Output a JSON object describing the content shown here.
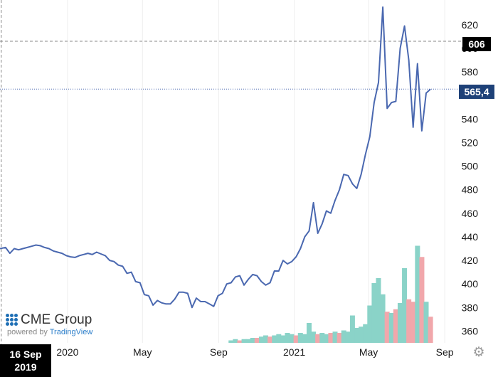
{
  "chart_data": {
    "type": "line",
    "title": "",
    "xlabel": "",
    "ylabel": "",
    "x_ticks": [
      "2020",
      "May",
      "Sep",
      "2021",
      "May",
      "Sep"
    ],
    "y_ticks": [
      "360",
      "380",
      "400",
      "420",
      "440",
      "460",
      "480",
      "500",
      "520",
      "540",
      "560",
      "580",
      "600",
      "620"
    ],
    "ylim": [
      350,
      635
    ],
    "xlim": [
      "2019-09-14",
      "2021-11-03"
    ],
    "grid": "vertical",
    "crosshair": {
      "x": "2019-09-16",
      "y": 606
    },
    "last_price": "565,4",
    "last_value": 565.4,
    "colors": {
      "line": "#4a68b0",
      "volume_up": "#8ad3c8",
      "volume_down": "#f1a7ab",
      "last_price_badge": "#1e4178",
      "crosshair_badge": "#000000"
    },
    "series": [
      {
        "values": [
          [
            "2019-09-14",
            430
          ],
          [
            "2019-09-23",
            431
          ],
          [
            "2019-09-30",
            426
          ],
          [
            "2019-10-07",
            430
          ],
          [
            "2019-10-14",
            429
          ],
          [
            "2019-10-21",
            430
          ],
          [
            "2019-10-28",
            431
          ],
          [
            "2019-11-04",
            432
          ],
          [
            "2019-11-11",
            433
          ],
          [
            "2019-11-18",
            432.5
          ],
          [
            "2019-11-25",
            431
          ],
          [
            "2019-12-02",
            430
          ],
          [
            "2019-12-09",
            428
          ],
          [
            "2019-12-16",
            427
          ],
          [
            "2019-12-23",
            426
          ],
          [
            "2019-12-30",
            424
          ],
          [
            "2020-01-06",
            423
          ],
          [
            "2020-01-13",
            422.5
          ],
          [
            "2020-01-20",
            424
          ],
          [
            "2020-01-27",
            425
          ],
          [
            "2020-02-03",
            426
          ],
          [
            "2020-02-10",
            425
          ],
          [
            "2020-02-17",
            427
          ],
          [
            "2020-02-24",
            425.5
          ],
          [
            "2020-03-02",
            424
          ],
          [
            "2020-03-09",
            420
          ],
          [
            "2020-03-16",
            419
          ],
          [
            "2020-03-23",
            416
          ],
          [
            "2020-03-30",
            415
          ],
          [
            "2020-04-06",
            409
          ],
          [
            "2020-04-13",
            410
          ],
          [
            "2020-04-20",
            402
          ],
          [
            "2020-04-27",
            401
          ],
          [
            "2020-05-04",
            391
          ],
          [
            "2020-05-11",
            390
          ],
          [
            "2020-05-18",
            382
          ],
          [
            "2020-05-25",
            386
          ],
          [
            "2020-06-01",
            384
          ],
          [
            "2020-06-08",
            383
          ],
          [
            "2020-06-15",
            383
          ],
          [
            "2020-06-22",
            387
          ],
          [
            "2020-06-29",
            393
          ],
          [
            "2020-07-06",
            393
          ],
          [
            "2020-07-13",
            392
          ],
          [
            "2020-07-20",
            380
          ],
          [
            "2020-07-27",
            388
          ],
          [
            "2020-08-03",
            385
          ],
          [
            "2020-08-10",
            385
          ],
          [
            "2020-08-17",
            383
          ],
          [
            "2020-08-24",
            381
          ],
          [
            "2020-08-31",
            390
          ],
          [
            "2020-09-07",
            392
          ],
          [
            "2020-09-14",
            400
          ],
          [
            "2020-09-21",
            401
          ],
          [
            "2020-09-28",
            406
          ],
          [
            "2020-10-05",
            407
          ],
          [
            "2020-10-12",
            399
          ],
          [
            "2020-10-19",
            404
          ],
          [
            "2020-10-26",
            408
          ],
          [
            "2020-11-02",
            407
          ],
          [
            "2020-11-09",
            402
          ],
          [
            "2020-11-16",
            399
          ],
          [
            "2020-11-23",
            401
          ],
          [
            "2020-11-30",
            411
          ],
          [
            "2020-12-07",
            411
          ],
          [
            "2020-12-14",
            420
          ],
          [
            "2020-12-21",
            417
          ],
          [
            "2020-12-28",
            419
          ],
          [
            "2021-01-04",
            423
          ],
          [
            "2021-01-11",
            430
          ],
          [
            "2021-01-18",
            440
          ],
          [
            "2021-01-25",
            445
          ],
          [
            "2021-02-01",
            469
          ],
          [
            "2021-02-08",
            443
          ],
          [
            "2021-02-15",
            451
          ],
          [
            "2021-02-22",
            462
          ],
          [
            "2021-03-01",
            460
          ],
          [
            "2021-03-08",
            471
          ],
          [
            "2021-03-15",
            480
          ],
          [
            "2021-03-22",
            493
          ],
          [
            "2021-03-29",
            492
          ],
          [
            "2021-04-05",
            485
          ],
          [
            "2021-04-12",
            481
          ],
          [
            "2021-04-19",
            493
          ],
          [
            "2021-04-26",
            510
          ],
          [
            "2021-05-03",
            525
          ],
          [
            "2021-05-10",
            554
          ],
          [
            "2021-05-17",
            571
          ],
          [
            "2021-05-24",
            635
          ],
          [
            "2021-05-31",
            549
          ],
          [
            "2021-06-07",
            554
          ],
          [
            "2021-06-14",
            555
          ],
          [
            "2021-06-21",
            600
          ],
          [
            "2021-06-28",
            619
          ],
          [
            "2021-07-05",
            590
          ],
          [
            "2021-07-12",
            533
          ],
          [
            "2021-07-19",
            587
          ],
          [
            "2021-07-26",
            530
          ],
          [
            "2021-08-02",
            562
          ],
          [
            "2021-08-09",
            565.4
          ]
        ]
      }
    ],
    "volume": [
      {
        "x": "2020-09-21",
        "v": 2,
        "dir": "up"
      },
      {
        "x": "2020-09-28",
        "v": 3,
        "dir": "up"
      },
      {
        "x": "2020-10-05",
        "v": 2,
        "dir": "down"
      },
      {
        "x": "2020-10-12",
        "v": 3,
        "dir": "up"
      },
      {
        "x": "2020-10-19",
        "v": 3,
        "dir": "up"
      },
      {
        "x": "2020-10-26",
        "v": 4,
        "dir": "up"
      },
      {
        "x": "2020-11-02",
        "v": 4,
        "dir": "down"
      },
      {
        "x": "2020-11-09",
        "v": 5,
        "dir": "up"
      },
      {
        "x": "2020-11-16",
        "v": 6,
        "dir": "up"
      },
      {
        "x": "2020-11-23",
        "v": 5,
        "dir": "down"
      },
      {
        "x": "2020-11-30",
        "v": 6,
        "dir": "up"
      },
      {
        "x": "2020-12-07",
        "v": 7,
        "dir": "up"
      },
      {
        "x": "2020-12-14",
        "v": 6,
        "dir": "up"
      },
      {
        "x": "2020-12-21",
        "v": 8,
        "dir": "up"
      },
      {
        "x": "2020-12-28",
        "v": 7,
        "dir": "up"
      },
      {
        "x": "2021-01-04",
        "v": 6,
        "dir": "down"
      },
      {
        "x": "2021-01-11",
        "v": 8,
        "dir": "up"
      },
      {
        "x": "2021-01-18",
        "v": 7,
        "dir": "up"
      },
      {
        "x": "2021-01-25",
        "v": 16,
        "dir": "up"
      },
      {
        "x": "2021-02-01",
        "v": 9,
        "dir": "up"
      },
      {
        "x": "2021-02-08",
        "v": 7,
        "dir": "down"
      },
      {
        "x": "2021-02-15",
        "v": 8,
        "dir": "up"
      },
      {
        "x": "2021-02-22",
        "v": 7,
        "dir": "up"
      },
      {
        "x": "2021-03-01",
        "v": 8,
        "dir": "down"
      },
      {
        "x": "2021-03-08",
        "v": 9,
        "dir": "up"
      },
      {
        "x": "2021-03-15",
        "v": 8,
        "dir": "down"
      },
      {
        "x": "2021-03-22",
        "v": 10,
        "dir": "up"
      },
      {
        "x": "2021-03-29",
        "v": 9,
        "dir": "up"
      },
      {
        "x": "2021-04-05",
        "v": 22,
        "dir": "up"
      },
      {
        "x": "2021-04-12",
        "v": 12,
        "dir": "up"
      },
      {
        "x": "2021-04-19",
        "v": 13,
        "dir": "up"
      },
      {
        "x": "2021-04-26",
        "v": 15,
        "dir": "up"
      },
      {
        "x": "2021-05-03",
        "v": 30,
        "dir": "up"
      },
      {
        "x": "2021-05-10",
        "v": 48,
        "dir": "up"
      },
      {
        "x": "2021-05-17",
        "v": 52,
        "dir": "up"
      },
      {
        "x": "2021-05-24",
        "v": 39,
        "dir": "up"
      },
      {
        "x": "2021-05-31",
        "v": 25,
        "dir": "down"
      },
      {
        "x": "2021-06-07",
        "v": 24,
        "dir": "up"
      },
      {
        "x": "2021-06-14",
        "v": 27,
        "dir": "down"
      },
      {
        "x": "2021-06-21",
        "v": 32,
        "dir": "up"
      },
      {
        "x": "2021-06-28",
        "v": 60,
        "dir": "up"
      },
      {
        "x": "2021-07-05",
        "v": 35,
        "dir": "down"
      },
      {
        "x": "2021-07-12",
        "v": 33,
        "dir": "down"
      },
      {
        "x": "2021-07-19",
        "v": 78,
        "dir": "up"
      },
      {
        "x": "2021-07-26",
        "v": 69,
        "dir": "down"
      },
      {
        "x": "2021-08-02",
        "v": 33,
        "dir": "up"
      },
      {
        "x": "2021-08-09",
        "v": 21,
        "dir": "down"
      }
    ]
  },
  "logo": {
    "brand": "CME Group",
    "powered_prefix": "powered by",
    "powered_brand": "TradingView"
  },
  "crosshair_date": {
    "line1": "16 Sep",
    "line2": "2019"
  },
  "badges": {
    "crosshair_value": "606",
    "last_price": "565,4"
  },
  "gear": {
    "icon": "gear-icon"
  }
}
